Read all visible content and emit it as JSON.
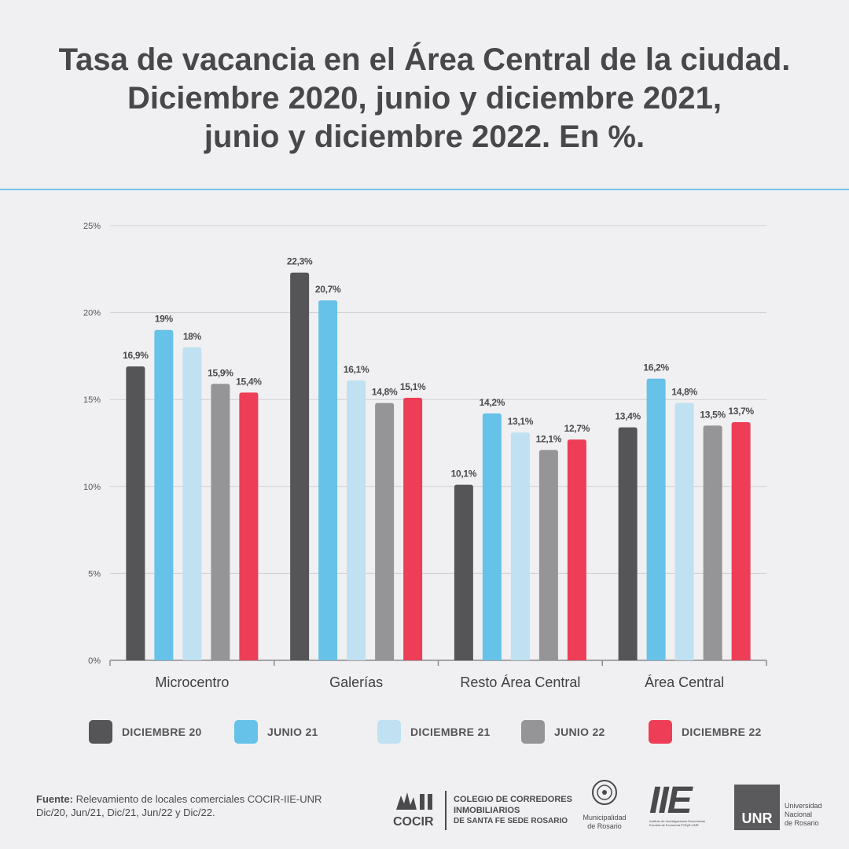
{
  "title": {
    "line1": "Tasa de vacancia en el Área Central de la ciudad.",
    "line2": "Diciembre 2020, junio y diciembre 2021,",
    "line3": "junio y diciembre 2022. En %."
  },
  "colors": {
    "divider": "#79c3e6",
    "dic20": "#555557",
    "jun21": "#66c2e8",
    "dic21": "#bfe1f2",
    "jun22": "#959597",
    "dic22": "#ee3e57"
  },
  "chart_data": {
    "type": "bar",
    "categories": [
      "Microcentro",
      "Galerías",
      "Resto Área Central",
      "Área Central"
    ],
    "series": [
      {
        "name": "DICIEMBRE 20",
        "values": [
          16.9,
          22.3,
          10.1,
          13.4
        ],
        "labels": [
          "16,9%",
          "22,3%",
          "10,1%",
          "13,4%"
        ],
        "color": "#555557"
      },
      {
        "name": "JUNIO 21",
        "values": [
          19,
          20.7,
          14.2,
          16.2
        ],
        "labels": [
          "19%",
          "20,7%",
          "14,2%",
          "16,2%"
        ],
        "color": "#66c2e8"
      },
      {
        "name": "DICIEMBRE 21",
        "values": [
          18,
          16.1,
          13.1,
          14.8
        ],
        "labels": [
          "18%",
          "16,1%",
          "13,1%",
          "14,8%"
        ],
        "color": "#bfe1f2"
      },
      {
        "name": "JUNIO 22",
        "values": [
          15.9,
          14.8,
          12.1,
          13.5
        ],
        "labels": [
          "15,9%",
          "14,8%",
          "12,1%",
          "13,5%"
        ],
        "color": "#959597"
      },
      {
        "name": "DICIEMBRE 22",
        "values": [
          15.4,
          15.1,
          12.7,
          13.7
        ],
        "labels": [
          "15,4%",
          "15,1%",
          "12,7%",
          "13,7%"
        ],
        "color": "#ee3e57"
      }
    ],
    "ylim": [
      0,
      25
    ],
    "yticks": [
      0,
      5,
      10,
      15,
      20,
      25
    ],
    "ytick_labels": [
      "0%",
      "5%",
      "10%",
      "15%",
      "20%",
      "25%"
    ],
    "grid": true,
    "legend": "bottom"
  },
  "source": {
    "label": "Fuente:",
    "line1": "Relevamiento de locales comerciales COCIR-IIE-UNR",
    "line2": "Dic/20, Jun/21, Dic/21, Jun/22 y Dic/22."
  },
  "logos": {
    "cocir_name": "COCIR",
    "cocir_line1": "COLEGIO DE CORREDORES",
    "cocir_line2": "INMOBILIARIOS",
    "cocir_line3": "DE SANTA FE SEDE ROSARIO",
    "muni_line1": "Municipalidad",
    "muni_line2": "de Rosario",
    "iie_name": "IIE",
    "iie_line1": "Instituto de Investigaciones Económicas",
    "iie_line2": "Escuela de Economía FCEyE-UNR",
    "unr_name": "UNR",
    "unr_line1": "Universidad",
    "unr_line2": "Nacional",
    "unr_line3": "de Rosario"
  }
}
